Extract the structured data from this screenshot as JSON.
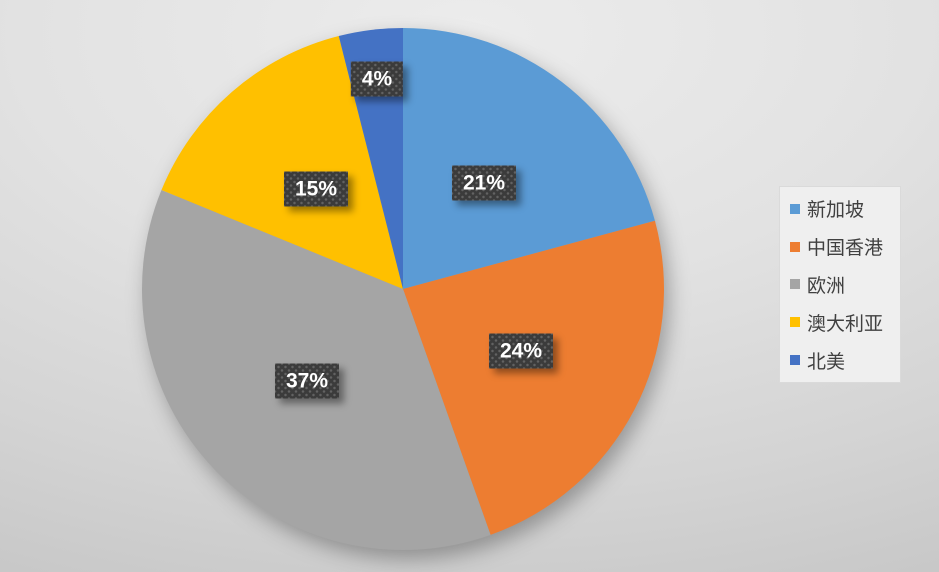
{
  "chart_data": {
    "type": "pie",
    "title": "",
    "categories": [
      "新加坡",
      "中国香港",
      "欧洲",
      "澳大利亚",
      "北美"
    ],
    "values": [
      21,
      24,
      37,
      15,
      4
    ],
    "labels": [
      "21%",
      "24%",
      "37%",
      "15%",
      "4%"
    ],
    "colors": [
      "#5B9BD5",
      "#ED7D31",
      "#A5A5A5",
      "#FFC000",
      "#4472C4"
    ],
    "start_angle_deg": 0,
    "direction": "clockwise",
    "legend_position": "right",
    "label_style": {
      "badge_background": "#3B3B3B",
      "badge_pattern": "dotted",
      "text_color": "#FFFFFF"
    },
    "legend_text_color": "#404040",
    "background": {
      "type": "gradient",
      "from": "#ECECEC",
      "to": "#C5C5C5"
    }
  }
}
